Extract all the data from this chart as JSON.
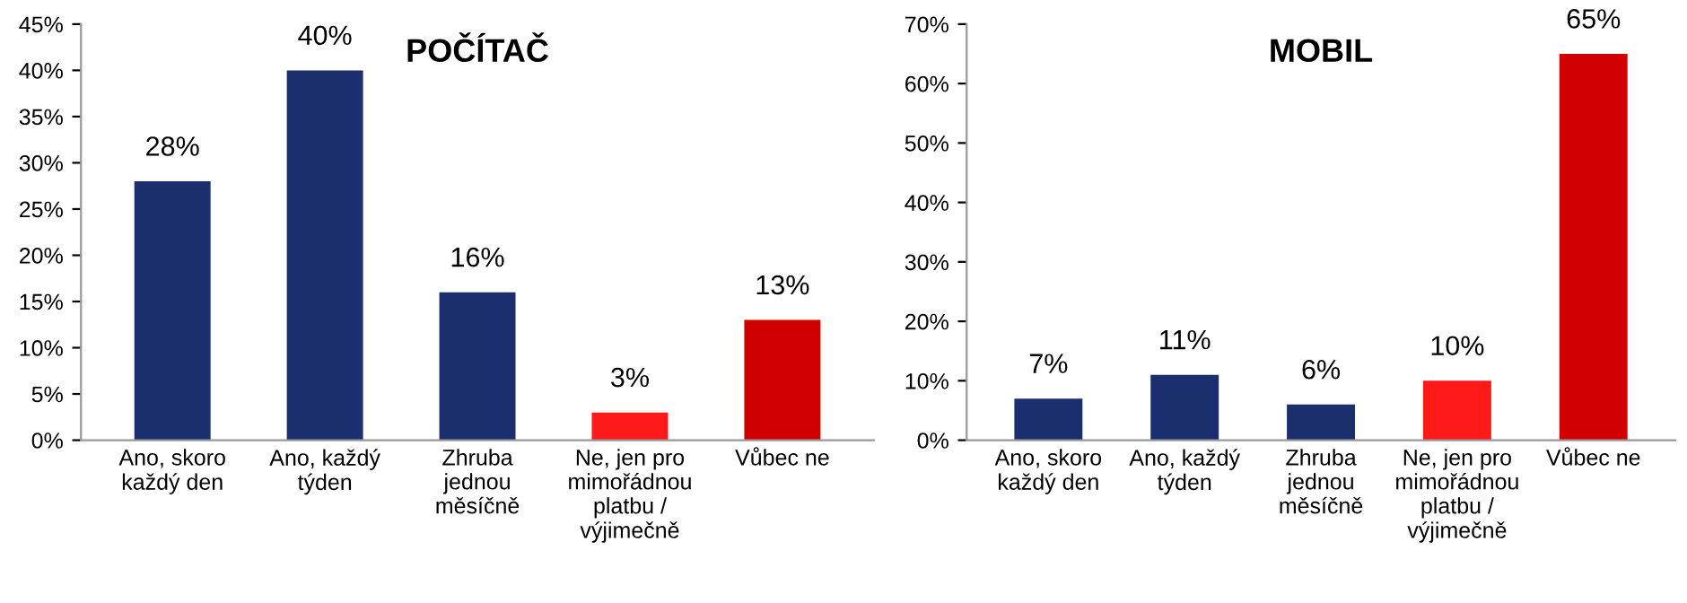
{
  "chart_data": [
    {
      "type": "bar",
      "title": "POČÍTAČ",
      "categories": [
        "Ano, skoro\nkaždý den",
        "Ano, každý\ntýden",
        "Zhruba\njednou\nměsíčně",
        "Ne, jen pro\nmimořádnou\nplatbu /\nvýjimečně",
        "Vůbec ne"
      ],
      "values": [
        28,
        40,
        16,
        3,
        13
      ],
      "colors": [
        "#1b2f6e",
        "#1b2f6e",
        "#1b2f6e",
        "#ff1a1a",
        "#d00000"
      ],
      "value_labels": [
        "28%",
        "40%",
        "16%",
        "3%",
        "13%"
      ],
      "ylim": [
        0,
        45
      ],
      "yticks": [
        {
          "value": 0,
          "label": "0%"
        },
        {
          "value": 5,
          "label": "5%"
        },
        {
          "value": 10,
          "label": "10%"
        },
        {
          "value": 15,
          "label": "15%"
        },
        {
          "value": 20,
          "label": "20%"
        },
        {
          "value": 25,
          "label": "25%"
        },
        {
          "value": 30,
          "label": "30%"
        },
        {
          "value": 35,
          "label": "35%"
        },
        {
          "value": 40,
          "label": "40%"
        },
        {
          "value": 45,
          "label": "45%"
        }
      ],
      "grid": false,
      "legend": false
    },
    {
      "type": "bar",
      "title": "MOBIL",
      "categories": [
        "Ano, skoro\nkaždý den",
        "Ano, každý\ntýden",
        "Zhruba\njednou\nměsíčně",
        "Ne, jen pro\nmimořádnou\nplatbu /\nvýjimečně",
        "Vůbec ne"
      ],
      "values": [
        7,
        11,
        6,
        10,
        65
      ],
      "colors": [
        "#1b2f6e",
        "#1b2f6e",
        "#1b2f6e",
        "#ff1a1a",
        "#d00000"
      ],
      "value_labels": [
        "7%",
        "11%",
        "6%",
        "10%",
        "65%"
      ],
      "ylim": [
        0,
        70
      ],
      "yticks": [
        {
          "value": 0,
          "label": "0%"
        },
        {
          "value": 10,
          "label": "10%"
        },
        {
          "value": 20,
          "label": "20%"
        },
        {
          "value": 30,
          "label": "30%"
        },
        {
          "value": 40,
          "label": "40%"
        },
        {
          "value": 50,
          "label": "50%"
        },
        {
          "value": 60,
          "label": "60%"
        },
        {
          "value": 70,
          "label": "70%"
        }
      ],
      "grid": false,
      "legend": false
    }
  ]
}
